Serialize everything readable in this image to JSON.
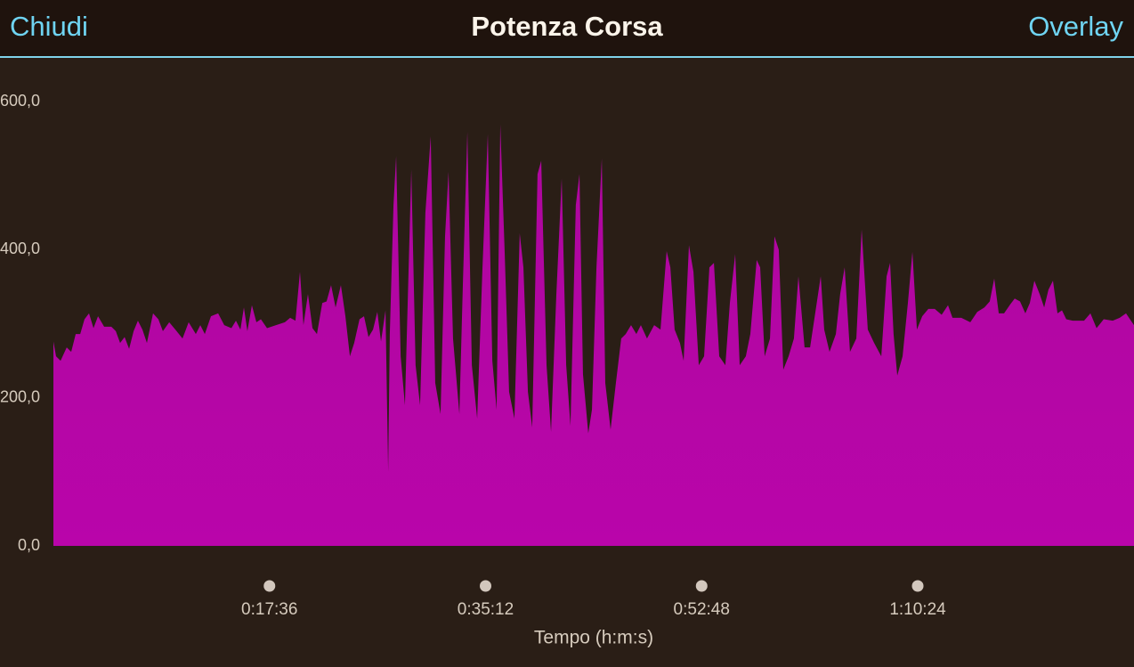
{
  "header": {
    "close": "Chiudi",
    "title": "Potenza Corsa",
    "action": "Overlay"
  },
  "chart_data": {
    "type": "area",
    "x_label": "Tempo (h:m:s)",
    "color": "#b905aa",
    "xlim": [
      0,
      5281
    ],
    "xticks": [
      {
        "value": 1056,
        "label": "0:17:36"
      },
      {
        "value": 2112,
        "label": "0:35:12"
      },
      {
        "value": 3168,
        "label": "0:52:48"
      },
      {
        "value": 4224,
        "label": "1:10:24"
      }
    ],
    "ylim": [
      0,
      600
    ],
    "yticks": [
      {
        "value": 0,
        "label": "0,0"
      },
      {
        "value": 200,
        "label": "200,0"
      },
      {
        "value": 400,
        "label": "400,0"
      },
      {
        "value": 600,
        "label": "600,0"
      }
    ],
    "x": [
      0,
      13,
      35,
      65,
      87,
      109,
      131,
      152,
      174,
      196,
      218,
      248,
      283,
      305,
      326,
      348,
      370,
      392,
      413,
      435,
      457,
      487,
      513,
      535,
      566,
      596,
      631,
      661,
      696,
      718,
      740,
      770,
      805,
      835,
      870,
      892,
      914,
      931,
      948,
      970,
      992,
      1014,
      1044,
      1088,
      1131,
      1157,
      1183,
      1205,
      1222,
      1244,
      1266,
      1288,
      1314,
      1335,
      1357,
      1379,
      1405,
      1427,
      1449,
      1470,
      1496,
      1518,
      1540,
      1562,
      1583,
      1601,
      1623,
      1636,
      1644,
      1662,
      1675,
      1697,
      1718,
      1749,
      1770,
      1792,
      1818,
      1844,
      1866,
      1892,
      1914,
      1931,
      1953,
      1984,
      2001,
      2023,
      2045,
      2071,
      2097,
      2123,
      2145,
      2166,
      2184,
      2205,
      2227,
      2253,
      2279,
      2297,
      2319,
      2340,
      2366,
      2384,
      2410,
      2432,
      2458,
      2484,
      2506,
      2527,
      2553,
      2571,
      2588,
      2614,
      2632,
      2654,
      2680,
      2697,
      2723,
      2749,
      2775,
      2797,
      2823,
      2849,
      2871,
      2901,
      2936,
      2967,
      2997,
      3015,
      3036,
      3062,
      3080,
      3106,
      3128,
      3154,
      3180,
      3206,
      3228,
      3254,
      3284,
      3306,
      3332,
      3354,
      3384,
      3406,
      3437,
      3454,
      3476,
      3502,
      3524,
      3545,
      3567,
      3593,
      3619,
      3641,
      3671,
      3698,
      3724,
      3750,
      3767,
      3793,
      3824,
      3845,
      3867,
      3893,
      3924,
      3950,
      3980,
      4011,
      4046,
      4072,
      4089,
      4106,
      4124,
      4150,
      4176,
      4198,
      4220,
      4246,
      4276,
      4307,
      4341,
      4372,
      4394,
      4437,
      4481,
      4515,
      4550,
      4576,
      4598,
      4620,
      4646,
      4676,
      4698,
      4724,
      4750,
      4772,
      4794,
      4820,
      4842,
      4863,
      4885,
      4907,
      4929,
      4950,
      4981,
      5011,
      5037,
      5068,
      5098,
      5133,
      5177,
      5211,
      5242,
      5281
    ],
    "values": [
      276,
      256,
      250,
      268,
      262,
      286,
      286,
      306,
      314,
      294,
      310,
      296,
      296,
      290,
      274,
      282,
      266,
      290,
      304,
      292,
      274,
      314,
      306,
      290,
      302,
      292,
      280,
      302,
      286,
      298,
      286,
      310,
      314,
      298,
      294,
      304,
      292,
      322,
      290,
      325,
      302,
      306,
      294,
      298,
      302,
      308,
      304,
      370,
      298,
      340,
      294,
      286,
      328,
      330,
      352,
      322,
      352,
      310,
      256,
      274,
      306,
      310,
      282,
      292,
      316,
      276,
      318,
      100,
      286,
      460,
      526,
      256,
      190,
      508,
      244,
      190,
      450,
      553,
      220,
      178,
      418,
      505,
      280,
      178,
      352,
      559,
      244,
      172,
      376,
      556,
      250,
      184,
      569,
      400,
      208,
      172,
      422,
      376,
      208,
      160,
      502,
      520,
      244,
      154,
      340,
      496,
      244,
      162,
      460,
      502,
      232,
      152,
      184,
      376,
      523,
      220,
      157,
      220,
      280,
      286,
      298,
      286,
      298,
      280,
      298,
      292,
      398,
      376,
      292,
      274,
      250,
      406,
      370,
      244,
      256,
      376,
      382,
      256,
      244,
      328,
      394,
      244,
      256,
      286,
      386,
      376,
      256,
      280,
      418,
      400,
      238,
      256,
      280,
      364,
      268,
      268,
      316,
      364,
      292,
      262,
      286,
      340,
      376,
      262,
      280,
      427,
      292,
      274,
      256,
      364,
      382,
      286,
      230,
      256,
      328,
      397,
      292,
      310,
      320,
      320,
      312,
      325,
      308,
      308,
      302,
      316,
      322,
      330,
      361,
      314,
      314,
      326,
      334,
      330,
      314,
      328,
      358,
      340,
      322,
      346,
      358,
      314,
      318,
      306,
      304,
      304,
      304,
      314,
      294,
      306,
      304,
      308,
      314,
      298
    ]
  }
}
